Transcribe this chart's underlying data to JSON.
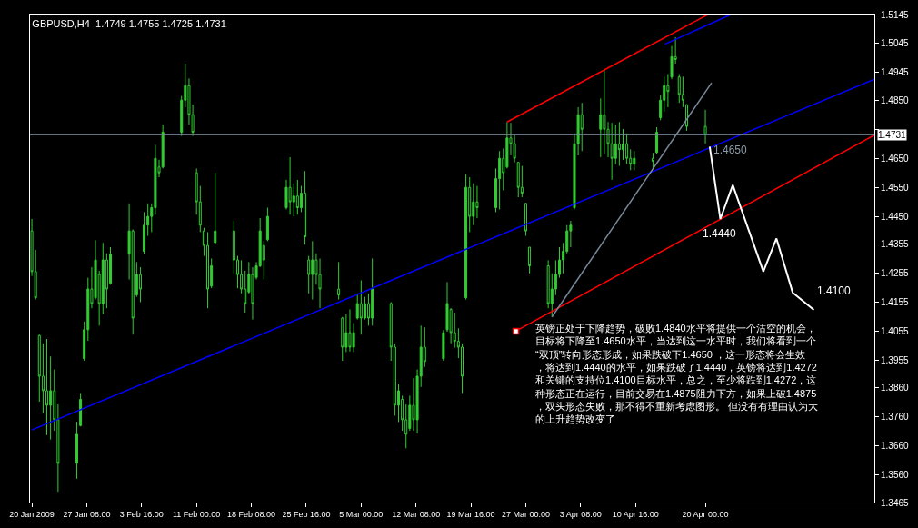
{
  "chart_data": {
    "type": "candlestick",
    "title": "GBPUSD,H4  1.4749 1.4755 1.4725 1.4731",
    "color": "#32cd32",
    "x": [
      "2009-01-20T00:00",
      "2009-01-20T12:00",
      "2009-01-21T00:00",
      "2009-01-21T12:00",
      "2009-01-22T00:00",
      "2009-01-22T12:00",
      "2009-01-23T00:00",
      "2009-01-23T12:00",
      "2009-01-26T00:00",
      "2009-01-26T12:00",
      "2009-01-27T00:00",
      "2009-01-27T12:00",
      "2009-01-28T00:00",
      "2009-01-28T12:00",
      "2009-01-29T00:00",
      "2009-01-29T12:00",
      "2009-01-30T00:00",
      "2009-01-30T12:00",
      "2009-02-02T00:00",
      "2009-02-02T12:00",
      "2009-02-03T00:00",
      "2009-02-03T12:00",
      "2009-02-04T00:00",
      "2009-02-04T12:00",
      "2009-02-05T00:00",
      "2009-02-05T12:00",
      "2009-02-06T00:00",
      "2009-02-06T12:00",
      "2009-02-09T00:00",
      "2009-02-09T12:00",
      "2009-02-10T00:00",
      "2009-02-10T12:00",
      "2009-02-11T00:00",
      "2009-02-11T12:00",
      "2009-02-12T00:00",
      "2009-02-12T12:00",
      "2009-02-13T00:00",
      "2009-02-13T12:00",
      "2009-02-16T00:00",
      "2009-02-16T12:00",
      "2009-02-17T00:00",
      "2009-02-17T12:00",
      "2009-02-18T00:00",
      "2009-02-18T12:00",
      "2009-02-19T00:00",
      "2009-02-19T12:00",
      "2009-02-20T00:00",
      "2009-02-20T12:00",
      "2009-02-23T00:00",
      "2009-02-23T12:00",
      "2009-02-24T00:00",
      "2009-02-24T12:00",
      "2009-02-25T00:00",
      "2009-02-25T12:00",
      "2009-02-26T00:00",
      "2009-02-26T12:00",
      "2009-02-27T00:00",
      "2009-02-27T12:00",
      "2009-03-02T00:00",
      "2009-03-02T12:00",
      "2009-03-03T00:00",
      "2009-03-03T12:00",
      "2009-03-04T00:00",
      "2009-03-04T12:00",
      "2009-03-05T00:00",
      "2009-03-05T12:00",
      "2009-03-06T00:00",
      "2009-03-06T12:00",
      "2009-03-09T00:00",
      "2009-03-09T12:00",
      "2009-03-10T00:00",
      "2009-03-10T12:00",
      "2009-03-11T00:00",
      "2009-03-11T12:00",
      "2009-03-12T00:00",
      "2009-03-12T12:00",
      "2009-03-13T00:00",
      "2009-03-13T12:00",
      "2009-03-16T00:00",
      "2009-03-16T12:00",
      "2009-03-17T00:00",
      "2009-03-17T12:00",
      "2009-03-18T00:00",
      "2009-03-18T12:00",
      "2009-03-19T00:00",
      "2009-03-19T12:00",
      "2009-03-20T00:00",
      "2009-03-20T12:00",
      "2009-03-23T00:00",
      "2009-03-23T12:00",
      "2009-03-24T00:00",
      "2009-03-24T12:00",
      "2009-03-25T00:00",
      "2009-03-25T12:00",
      "2009-03-26T00:00",
      "2009-03-26T12:00",
      "2009-03-27T00:00",
      "2009-03-27T12:00",
      "2009-03-30T00:00",
      "2009-03-30T12:00",
      "2009-03-31T00:00",
      "2009-03-31T12:00",
      "2009-04-01T00:00",
      "2009-04-01T12:00",
      "2009-04-02T00:00",
      "2009-04-02T12:00",
      "2009-04-03T00:00",
      "2009-04-03T12:00",
      "2009-04-06T00:00",
      "2009-04-06T12:00",
      "2009-04-07T00:00",
      "2009-04-07T12:00",
      "2009-04-08T00:00",
      "2009-04-08T12:00",
      "2009-04-09T00:00",
      "2009-04-09T12:00",
      "2009-04-10T00:00",
      "2009-04-10T12:00",
      "2009-04-13T00:00",
      "2009-04-13T12:00",
      "2009-04-14T00:00",
      "2009-04-14T12:00",
      "2009-04-15T00:00",
      "2009-04-15T12:00",
      "2009-04-16T00:00",
      "2009-04-16T12:00",
      "2009-04-17T00:00",
      "2009-04-17T12:00",
      "2009-04-20T00:00"
    ],
    "ohlc": [
      [
        1.44,
        1.4441,
        1.4245,
        1.426
      ],
      [
        1.426,
        1.4335,
        1.4164,
        1.417
      ],
      [
        1.404,
        1.4043,
        1.3812,
        1.39
      ],
      [
        1.39,
        1.4013,
        1.3773,
        1.385
      ],
      [
        1.385,
        1.4028,
        1.3697,
        1.38
      ],
      [
        1.38,
        1.3968,
        1.3682,
        1.385
      ],
      [
        1.385,
        1.3923,
        1.3712,
        1.375
      ],
      [
        1.375,
        1.3803,
        1.3502,
        1.36
      ],
      [
        1.36,
        1.3743,
        1.3547,
        1.37
      ],
      [
        1.373,
        1.3842,
        1.3727,
        1.382
      ],
      [
        1.396,
        1.4088,
        1.3953,
        1.406
      ],
      [
        1.406,
        1.4239,
        1.4022,
        1.42
      ],
      [
        1.42,
        1.4275,
        1.4134,
        1.415
      ],
      [
        1.417,
        1.4368,
        1.4164,
        1.43
      ],
      [
        1.425,
        1.4263,
        1.4074,
        1.415
      ],
      [
        1.415,
        1.4359,
        1.4113,
        1.43
      ],
      [
        1.43,
        1.4323,
        1.4134,
        1.42
      ],
      [
        1.422,
        1.4344,
        1.4215,
        1.432
      ],
      [
        1.432,
        1.4495,
        1.4233,
        1.44
      ],
      [
        1.44,
        1.4405,
        1.4043,
        1.41
      ],
      [
        1.418,
        1.4293,
        1.4173,
        1.425
      ],
      [
        1.425,
        1.4275,
        1.4155,
        1.42
      ],
      [
        1.433,
        1.4465,
        1.432,
        1.442
      ],
      [
        1.442,
        1.4495,
        1.4383,
        1.445
      ],
      [
        1.445,
        1.4495,
        1.4396,
        1.448
      ],
      [
        1.448,
        1.4696,
        1.4456,
        1.465
      ],
      [
        1.462,
        1.4645,
        1.4585,
        1.46
      ],
      [
        1.462,
        1.4766,
        1.4615,
        1.474
      ],
      [
        1.474,
        1.4865,
        1.4727,
        1.485
      ],
      [
        1.485,
        1.4976,
        1.4826,
        1.49
      ],
      [
        1.49,
        1.4925,
        1.4766,
        1.48
      ],
      [
        1.48,
        1.4835,
        1.4727,
        1.474
      ],
      [
        1.46,
        1.4615,
        1.4456,
        1.45
      ],
      [
        1.45,
        1.4555,
        1.4396,
        1.442
      ],
      [
        1.44,
        1.4411,
        1.4314,
        1.435
      ],
      [
        1.435,
        1.4396,
        1.4134,
        1.42
      ],
      [
        1.421,
        1.4305,
        1.4203,
        1.428
      ],
      [
        1.436,
        1.46,
        1.4353,
        1.44
      ],
      [
        1.44,
        1.4435,
        1.4254,
        1.43
      ],
      [
        1.43,
        1.4314,
        1.4203,
        1.425
      ],
      [
        1.425,
        1.4299,
        1.4185,
        1.42
      ],
      [
        1.42,
        1.4263,
        1.4119,
        1.415
      ],
      [
        1.419,
        1.4293,
        1.4185,
        1.425
      ],
      [
        1.425,
        1.4275,
        1.4095,
        1.415
      ],
      [
        1.424,
        1.4293,
        1.4233,
        1.428
      ],
      [
        1.428,
        1.4444,
        1.4275,
        1.44
      ],
      [
        1.435,
        1.4365,
        1.4233,
        1.43
      ],
      [
        1.437,
        1.448,
        1.4365,
        1.445
      ],
      [
        1.448,
        1.4576,
        1.4474,
        1.455
      ],
      [
        1.455,
        1.4654,
        1.4456,
        1.45
      ],
      [
        1.45,
        1.4564,
        1.445,
        1.452
      ],
      [
        1.452,
        1.4576,
        1.4456,
        1.448
      ],
      [
        1.448,
        1.4555,
        1.4465,
        1.453
      ],
      [
        1.453,
        1.4606,
        1.4353,
        1.438
      ],
      [
        1.43,
        1.4314,
        1.4185,
        1.425
      ],
      [
        1.425,
        1.4365,
        1.4164,
        1.43
      ],
      [
        1.43,
        1.4323,
        1.4215,
        1.425
      ],
      [
        1.425,
        1.4305,
        1.4134,
        1.42
      ],
      [
        1.42,
        1.4293,
        1.4164,
        1.418
      ],
      [
        1.41,
        1.4104,
        1.3953,
        1.4
      ],
      [
        1.4,
        1.4113,
        1.3983,
        1.405
      ],
      [
        1.405,
        1.413,
        1.3985,
        1.4
      ],
      [
        1.4,
        1.4083,
        1.3983,
        1.405
      ],
      [
        1.41,
        1.4185,
        1.4095,
        1.415
      ],
      [
        1.415,
        1.423,
        1.4043,
        1.41
      ],
      [
        1.41,
        1.4173,
        1.4095,
        1.415
      ],
      [
        1.415,
        1.4185,
        1.4074,
        1.41
      ],
      [
        1.41,
        1.4305,
        1.4074,
        1.42
      ],
      [
        1.415,
        1.4155,
        1.3953,
        1.4
      ],
      [
        1.4,
        1.4013,
        1.3764,
        1.38
      ],
      [
        1.38,
        1.3872,
        1.3742,
        1.385
      ],
      [
        1.382,
        1.3833,
        1.3712,
        1.375
      ],
      [
        1.375,
        1.3803,
        1.3652,
        1.37
      ],
      [
        1.372,
        1.3833,
        1.3712,
        1.38
      ],
      [
        1.38,
        1.3893,
        1.3712,
        1.375
      ],
      [
        1.375,
        1.3923,
        1.3703,
        1.39
      ],
      [
        1.39,
        1.4074,
        1.3863,
        1.4
      ],
      [
        1.4,
        1.4068,
        1.3932,
        1.395
      ],
      [
        1.396,
        1.4059,
        1.3953,
        1.405
      ],
      [
        1.406,
        1.4224,
        1.4053,
        1.415
      ],
      [
        1.413,
        1.4134,
        1.4013,
        1.405
      ],
      [
        1.405,
        1.4119,
        1.3998,
        1.402
      ],
      [
        1.402,
        1.4065,
        1.3962,
        1.4
      ],
      [
        1.4,
        1.4013,
        1.3842,
        1.39
      ],
      [
        1.417,
        1.4594,
        1.4164,
        1.455
      ],
      [
        1.455,
        1.4585,
        1.4396,
        1.445
      ],
      [
        1.445,
        1.4564,
        1.442,
        1.45
      ],
      [
        1.45,
        1.4555,
        1.4444,
        1.448
      ],
      [
        1.448,
        1.4615,
        1.4465,
        1.458
      ],
      [
        1.458,
        1.4675,
        1.4474,
        1.465
      ],
      [
        1.465,
        1.4684,
        1.454,
        1.46
      ],
      [
        1.462,
        1.4775,
        1.4615,
        1.472
      ],
      [
        1.472,
        1.4772,
        1.466,
        1.47
      ],
      [
        1.47,
        1.473,
        1.4636,
        1.465
      ],
      [
        1.4636,
        1.4636,
        1.4516,
        1.455
      ],
      [
        1.455,
        1.4624,
        1.4516,
        1.453
      ],
      [
        1.4495,
        1.4495,
        1.4383,
        1.44
      ],
      [
        1.4344,
        1.4344,
        1.4254,
        1.428
      ],
      [
        1.428,
        1.4299,
        1.4134,
        1.415
      ],
      [
        1.415,
        1.4254,
        1.4104,
        1.42
      ],
      [
        1.42,
        1.4299,
        1.4179,
        1.425
      ],
      [
        1.425,
        1.4344,
        1.4239,
        1.43
      ],
      [
        1.43,
        1.4359,
        1.4254,
        1.433
      ],
      [
        1.433,
        1.442,
        1.4323,
        1.44
      ],
      [
        1.44,
        1.4435,
        1.4344,
        1.442
      ],
      [
        1.448,
        1.4736,
        1.4474,
        1.47
      ],
      [
        1.47,
        1.4826,
        1.466,
        1.48
      ],
      [
        1.48,
        1.4841,
        1.4675,
        1.475
      ],
      [
        1.475,
        1.4856,
        1.4654,
        1.48
      ],
      [
        1.48,
        1.4955,
        1.4666,
        1.475
      ],
      [
        1.475,
        1.4775,
        1.4654,
        1.47
      ],
      [
        1.47,
        1.4772,
        1.4576,
        1.465
      ],
      [
        1.465,
        1.4766,
        1.463,
        1.47
      ],
      [
        1.47,
        1.4775,
        1.4624,
        1.468
      ],
      [
        1.468,
        1.4751,
        1.4645,
        1.47
      ],
      [
        1.47,
        1.4736,
        1.463,
        1.465
      ],
      [
        1.465,
        1.4681,
        1.4609,
        1.463
      ],
      [
        1.463,
        1.4675,
        1.4609,
        1.465
      ],
      [
        1.465,
        1.4669,
        1.4615,
        1.464
      ],
      [
        1.467,
        1.4757,
        1.4666,
        1.474
      ],
      [
        1.479,
        1.4868,
        1.4781,
        1.485
      ],
      [
        1.485,
        1.4931,
        1.4811,
        1.49
      ],
      [
        1.49,
        1.494,
        1.4826,
        1.488
      ],
      [
        1.493,
        1.5037,
        1.4922,
        1.5
      ],
      [
        1.5,
        1.5067,
        1.4976,
        1.499
      ],
      [
        1.493,
        1.494,
        1.4841,
        1.487
      ],
      [
        1.487,
        1.4931,
        1.4826,
        1.485
      ],
      [
        1.4835,
        1.4835,
        1.4745,
        1.476
      ],
      [
        1.476,
        1.4817,
        1.47,
        1.4731
      ]
    ],
    "series": [
      {
        "type": "line",
        "color": "#0000ff",
        "x": [
          "2009-01-20T00:00",
          "2009-05-12T14:00"
        ],
        "values": [
          1.3715,
          1.4922
        ]
      },
      {
        "type": "line",
        "color": "#0000ff",
        "x": [
          "2009-04-14T14:00",
          "2009-04-23T10:00"
        ],
        "values": [
          1.5043,
          1.5145
        ]
      },
      {
        "type": "line",
        "color": "#ff0000",
        "x": [
          "2009-03-24T12:00",
          "2009-04-20T08:00"
        ],
        "values": [
          1.4775,
          1.5145
        ]
      },
      {
        "type": "line",
        "color": "#ff0000",
        "x": [
          "2009-03-25T16:00",
          "2009-05-12T14:00"
        ],
        "values": [
          1.4055,
          1.473
        ]
      },
      {
        "type": "scatter",
        "marker": "square",
        "color": "#ff0000",
        "x": [
          "2009-03-25T16:00"
        ],
        "values": [
          1.4055
        ]
      },
      {
        "type": "line",
        "color": "#778899",
        "x": [
          "2009-03-30T12:00",
          "2009-04-20T20:00"
        ],
        "values": [
          1.4104,
          1.491
        ]
      },
      {
        "type": "line",
        "color": "#ffffff",
        "x": [
          "2009-04-20T14:00",
          "2009-04-22T00:00",
          "2009-04-23T16:00",
          "2009-04-27T18:00",
          "2009-04-29T12:00",
          "2009-05-01T16:00",
          "2009-05-04T12:00"
        ],
        "values": [
          1.469,
          1.4441,
          1.4558,
          1.426,
          1.4374,
          1.4188,
          1.4128
        ]
      }
    ],
    "ref_lines": [
      {
        "axis": "y",
        "value": 1.4731,
        "label": "1.4731",
        "color": "#778899"
      }
    ],
    "annotations": [
      "1.4650",
      "1.4440",
      "1.4100",
      "英镑正处于下降趋势，破败1.4840水平将提供一个沽空的机会，目标将下降至1.4650水平，当达到这一水平时，我们将看到一个“双顶”转向形态形成，如果跌破下1.4650 ，这一形态将会生效，将达到1.4440的水平，如果跌破了1.4440，英镑将达到1.4272和关键的支持位1.4100目标水平，总之，至少将跌到1.4272，这种形态正在运行，目前交易在1.4875阻力下方，如果上破1.4875，双头形态失败，那不得不重新考虑图形。 但没有有理由认为大的上升趋势改变了"
    ],
    "xlim": [
      "2009-01-19T18:00",
      "2009-05-12T14:00"
    ],
    "xticks": [
      {
        "value": "2009-01-20T00:00",
        "label": "20 Jan 2009"
      },
      {
        "value": "2009-01-27T08:00",
        "label": "27 Jan 08:00"
      },
      {
        "value": "2009-02-03T16:00",
        "label": "3 Feb 16:00"
      },
      {
        "value": "2009-02-11T00:00",
        "label": "11 Feb 00:00"
      },
      {
        "value": "2009-02-18T08:00",
        "label": "18 Feb 08:00"
      },
      {
        "value": "2009-02-25T16:00",
        "label": "25 Feb 16:00"
      },
      {
        "value": "2009-03-05T00:00",
        "label": "5 Mar 00:00"
      },
      {
        "value": "2009-03-12T08:00",
        "label": "12 Mar 08:00"
      },
      {
        "value": "2009-03-19T16:00",
        "label": "19 Mar 16:00"
      },
      {
        "value": "2009-03-27T00:00",
        "label": "27 Mar 00:00"
      },
      {
        "value": "2009-04-03T08:00",
        "label": "3 Apr 08:00"
      },
      {
        "value": "2009-04-10T16:00",
        "label": "10 Apr 16:00"
      },
      {
        "value": "2009-04-20T00:00",
        "label": "20 Apr 00:00"
      }
    ],
    "ylim": [
      1.3465,
      1.5145
    ],
    "yticks": [
      {
        "value": 1.3465,
        "label": "1.3465"
      },
      {
        "value": 1.356,
        "label": "1.3560"
      },
      {
        "value": 1.366,
        "label": "1.3660"
      },
      {
        "value": 1.376,
        "label": "1.3760"
      },
      {
        "value": 1.386,
        "label": "1.3860"
      },
      {
        "value": 1.3955,
        "label": "1.3955"
      },
      {
        "value": 1.4055,
        "label": "1.4055"
      },
      {
        "value": 1.4155,
        "label": "1.4155"
      },
      {
        "value": 1.4255,
        "label": "1.4255"
      },
      {
        "value": 1.4355,
        "label": "1.4355"
      },
      {
        "value": 1.445,
        "label": "1.4450"
      },
      {
        "value": 1.455,
        "label": "1.4550"
      },
      {
        "value": 1.465,
        "label": "1.4650"
      },
      {
        "value": 1.475,
        "label": null
      },
      {
        "value": 1.485,
        "label": "1.4850"
      },
      {
        "value": 1.4945,
        "label": "1.4945"
      },
      {
        "value": 1.5045,
        "label": "1.5045"
      },
      {
        "value": 1.5145,
        "label": "1.5145"
      }
    ],
    "grid": false
  }
}
